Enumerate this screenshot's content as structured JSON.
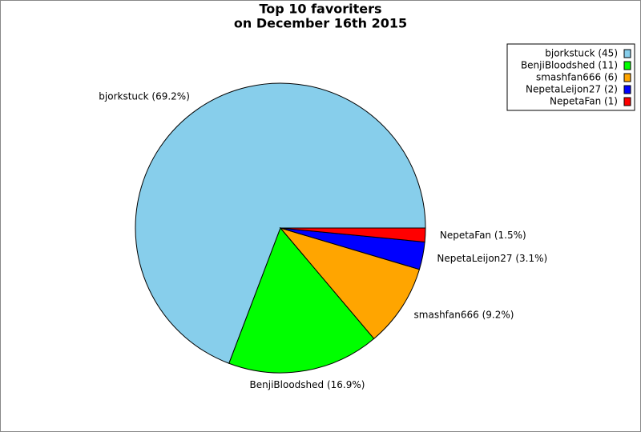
{
  "chart_data": {
    "type": "pie",
    "title": "Top 10 favoriters",
    "subtitle": "on December 16th 2015",
    "values": [
      45,
      11,
      6,
      2,
      1
    ],
    "value_labels": [
      "bjorkstuck (69.2%)",
      "BenjiBloodshed (16.9%)",
      "smashfan666 (9.2%)",
      "NepetaLeijon27 (3.1%)",
      "NepetaFan (1.5%)"
    ],
    "legend_labels": [
      "bjorkstuck (45)",
      "BenjiBloodshed (11)",
      "smashfan666 (6)",
      "NepetaLeijon27 (2)",
      "NepetaFan (1)"
    ],
    "colors": [
      "#87ceeb",
      "#00ff00",
      "#ffa500",
      "#0000ff",
      "#ff0000"
    ],
    "legend": "upper right"
  }
}
